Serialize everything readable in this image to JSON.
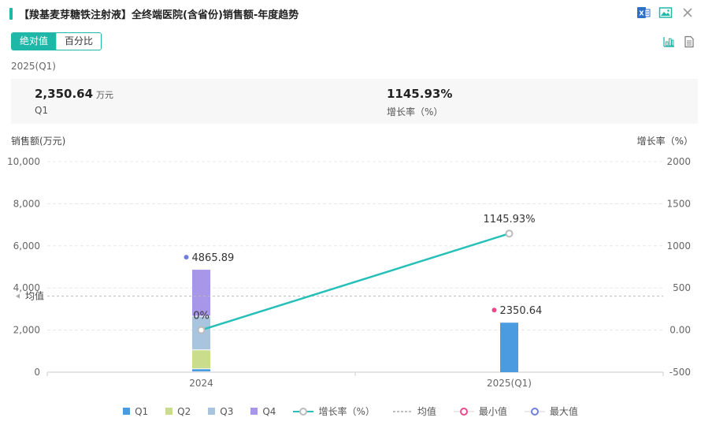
{
  "header": {
    "title": "【羧基麦芽糖铁注射液】全终端医院(含省份)销售额-年度趋势",
    "icons": [
      "excel-export-icon",
      "image-export-icon",
      "close-icon"
    ]
  },
  "tabs": [
    {
      "label": "绝对值",
      "active": true
    },
    {
      "label": "百分比",
      "active": false
    }
  ],
  "view_icons": [
    "bar-chart-icon",
    "table-view-icon"
  ],
  "period_label": "2025(Q1)",
  "summary": {
    "sales": {
      "value": "2,350.64",
      "unit": "万元",
      "label": "Q1"
    },
    "growth": {
      "value": "1145.93%",
      "label": "增长率（%）"
    }
  },
  "colors": {
    "accent": "#1fb8a8",
    "Q1": "#4a9be0",
    "Q2": "#c9dd8c",
    "Q3": "#a9c4df",
    "Q4": "#a897e8",
    "line": "#26c0b8",
    "min": "#e94a8a",
    "max": "#6f7ee0"
  },
  "chart_data": {
    "type": "bar",
    "stacked": true,
    "categories": [
      "2024",
      "2025(Q1)"
    ],
    "series": [
      {
        "name": "Q1",
        "values": [
          140,
          2350.64
        ]
      },
      {
        "name": "Q2",
        "values": [
          900,
          0
        ]
      },
      {
        "name": "Q3",
        "values": [
          1600,
          0
        ]
      },
      {
        "name": "Q4",
        "values": [
          2225.89,
          0
        ]
      }
    ],
    "line_series": {
      "name": "增长率（%）",
      "values": [
        0,
        1145.93
      ],
      "labels": [
        "0%",
        "1145.93%"
      ]
    },
    "totals": [
      4865.89,
      2350.64
    ],
    "total_labels": [
      "4865.89",
      "2350.64"
    ],
    "mean": {
      "name": "均值",
      "value": 3608.27,
      "label": "均值"
    },
    "min_label": "最小值",
    "max_label": "最大值",
    "ylabel": "销售额(万元)",
    "y2label": "增长率（%）",
    "ylim": [
      0,
      10000
    ],
    "y2lim": [
      -500,
      2000
    ],
    "yticks": [
      0,
      2000,
      4000,
      6000,
      8000,
      10000
    ],
    "ytick_labels": [
      "0",
      "2,000",
      "4,000",
      "6,000",
      "8,000",
      "10,000"
    ],
    "y2ticks": [
      -500,
      0,
      500,
      1000,
      1500,
      2000
    ],
    "y2tick_labels": [
      "-500",
      "0.00",
      "500",
      "1000",
      "1500",
      "2000"
    ],
    "grid": true,
    "legend_position": "bottom"
  },
  "legend": [
    {
      "key": "Q1",
      "label": "Q1",
      "kind": "square"
    },
    {
      "key": "Q2",
      "label": "Q2",
      "kind": "square"
    },
    {
      "key": "Q3",
      "label": "Q3",
      "kind": "square"
    },
    {
      "key": "Q4",
      "label": "Q4",
      "kind": "square"
    },
    {
      "key": "line",
      "label": "增长率（%）",
      "kind": "line"
    },
    {
      "key": "mean",
      "label": "均值",
      "kind": "dash"
    },
    {
      "key": "min",
      "label": "最小值",
      "kind": "ring"
    },
    {
      "key": "max",
      "label": "最大值",
      "kind": "ring"
    }
  ]
}
